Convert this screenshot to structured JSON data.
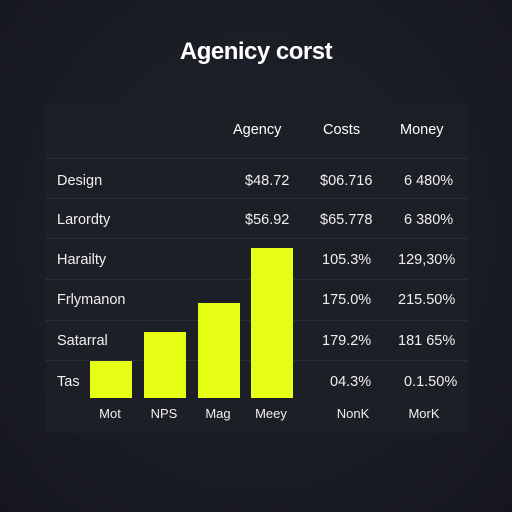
{
  "title": "Agenicy corst",
  "headers": [
    "Agency",
    "Costs",
    "Money"
  ],
  "rows": [
    {
      "label": "Design",
      "agency": "$48.72",
      "costs": "$06.716",
      "money": "6 480%"
    },
    {
      "label": "Larordty",
      "agency": "$56.92",
      "costs": "$65.778",
      "money": "6 380%"
    },
    {
      "label": "Harailty",
      "agency": "",
      "costs": "105.3%",
      "money": "129,30%"
    },
    {
      "label": "Frlymanon",
      "agency": "",
      "costs": "175.0%",
      "money": "215.50%"
    },
    {
      "label": "Satarral",
      "agency": "",
      "costs": "179.2%",
      "money": "181 65%"
    },
    {
      "label": "Tas",
      "agency": "",
      "costs": "04.3%",
      "money": "0.1.50%"
    }
  ],
  "bottom_labels": {
    "costs": "NonK",
    "money": "MorK"
  },
  "colors": {
    "bar": "#e6ff14",
    "background": "#1a1c24",
    "panel": "#1d1f27"
  },
  "chart_data": {
    "type": "bar",
    "categories": [
      "Mot",
      "NPS",
      "Mag",
      "Meey"
    ],
    "values": [
      1,
      1.8,
      2.6,
      4.1
    ],
    "title": "",
    "xlabel": "",
    "ylabel": "",
    "ylim": [
      0,
      4.1
    ],
    "grid": false
  }
}
